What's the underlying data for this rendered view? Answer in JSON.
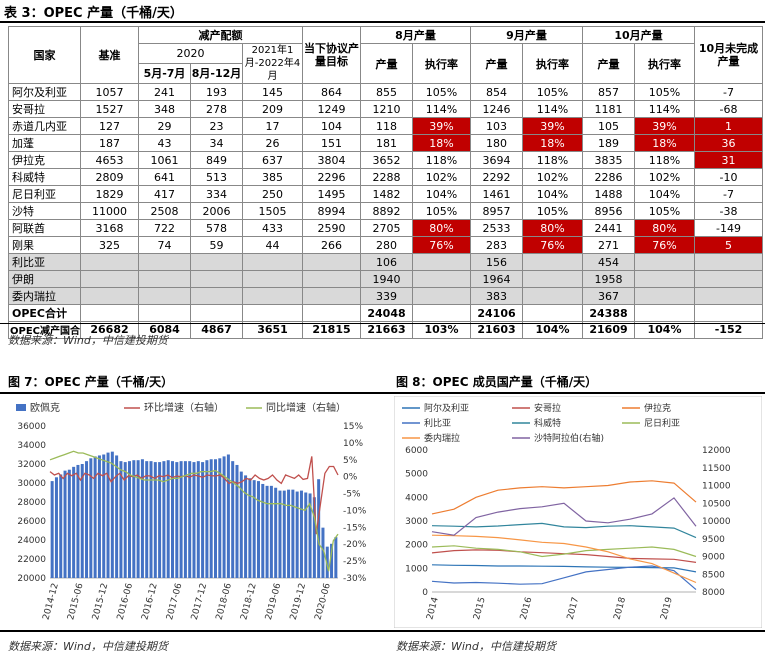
{
  "table": {
    "title": "表 3：OPEC 产量（千桶/天）",
    "headers": {
      "country": "国家",
      "base": "基准",
      "cut_quota": "减产配额",
      "year_2020": "2020",
      "may_jul": "5月-7月",
      "aug_dec": "8月-12月",
      "jan_apr": "2021年1月-2022年4月",
      "target": "当下协议产量目标",
      "aug": "8月产量",
      "sep": "9月产量",
      "oct": "10月产量",
      "production": "产量",
      "compliance": "执行率",
      "incomplete": "10月未完成产量"
    },
    "rows": [
      {
        "country": "阿尔及利亚",
        "base": "1057",
        "q1": "241",
        "q2": "193",
        "q3": "145",
        "target": "864",
        "aug": "855",
        "aug_r": "105%",
        "sep": "854",
        "sep_r": "105%",
        "oct": "857",
        "oct_r": "105%",
        "inc": "-7",
        "hl": []
      },
      {
        "country": "安哥拉",
        "base": "1527",
        "q1": "348",
        "q2": "278",
        "q3": "209",
        "target": "1249",
        "aug": "1210",
        "aug_r": "114%",
        "sep": "1246",
        "sep_r": "114%",
        "oct": "1181",
        "oct_r": "114%",
        "inc": "-68",
        "hl": []
      },
      {
        "country": "赤道几内亚",
        "base": "127",
        "q1": "29",
        "q2": "23",
        "q3": "17",
        "target": "104",
        "aug": "118",
        "aug_r": "39%",
        "sep": "103",
        "sep_r": "39%",
        "oct": "105",
        "oct_r": "39%",
        "inc": "1",
        "hl": [
          "aug_r",
          "sep_r",
          "oct_r",
          "inc"
        ]
      },
      {
        "country": "加蓬",
        "base": "187",
        "q1": "43",
        "q2": "34",
        "q3": "26",
        "target": "151",
        "aug": "181",
        "aug_r": "18%",
        "sep": "180",
        "sep_r": "18%",
        "oct": "189",
        "oct_r": "18%",
        "inc": "36",
        "hl": [
          "aug_r",
          "sep_r",
          "oct_r",
          "inc"
        ]
      },
      {
        "country": "伊拉克",
        "base": "4653",
        "q1": "1061",
        "q2": "849",
        "q3": "637",
        "target": "3804",
        "aug": "3652",
        "aug_r": "118%",
        "sep": "3694",
        "sep_r": "118%",
        "oct": "3835",
        "oct_r": "118%",
        "inc": "31",
        "hl": [
          "inc"
        ]
      },
      {
        "country": "科威特",
        "base": "2809",
        "q1": "641",
        "q2": "513",
        "q3": "385",
        "target": "2296",
        "aug": "2288",
        "aug_r": "102%",
        "sep": "2292",
        "sep_r": "102%",
        "oct": "2286",
        "oct_r": "102%",
        "inc": "-10",
        "hl": []
      },
      {
        "country": "尼日利亚",
        "base": "1829",
        "q1": "417",
        "q2": "334",
        "q3": "250",
        "target": "1495",
        "aug": "1482",
        "aug_r": "104%",
        "sep": "1461",
        "sep_r": "104%",
        "oct": "1488",
        "oct_r": "104%",
        "inc": "-7",
        "hl": []
      },
      {
        "country": "沙特",
        "base": "11000",
        "q1": "2508",
        "q2": "2006",
        "q3": "1505",
        "target": "8994",
        "aug": "8892",
        "aug_r": "105%",
        "sep": "8957",
        "sep_r": "105%",
        "oct": "8956",
        "oct_r": "105%",
        "inc": "-38",
        "hl": []
      },
      {
        "country": "阿联酋",
        "base": "3168",
        "q1": "722",
        "q2": "578",
        "q3": "433",
        "target": "2590",
        "aug": "2705",
        "aug_r": "80%",
        "sep": "2533",
        "sep_r": "80%",
        "oct": "2441",
        "oct_r": "80%",
        "inc": "-149",
        "hl": [
          "aug_r",
          "sep_r",
          "oct_r"
        ]
      },
      {
        "country": "刚果",
        "base": "325",
        "q1": "74",
        "q2": "59",
        "q3": "44",
        "target": "266",
        "aug": "280",
        "aug_r": "76%",
        "sep": "283",
        "sep_r": "76%",
        "oct": "271",
        "oct_r": "76%",
        "inc": "5",
        "hl": [
          "aug_r",
          "sep_r",
          "oct_r",
          "inc"
        ]
      }
    ],
    "exempt_rows": [
      {
        "country": "利比亚",
        "aug": "106",
        "sep": "156",
        "oct": "454"
      },
      {
        "country": "伊朗",
        "aug": "1940",
        "sep": "1964",
        "oct": "1958"
      },
      {
        "country": "委内瑞拉",
        "aug": "339",
        "sep": "383",
        "oct": "367"
      }
    ],
    "total": {
      "label": "OPEC合计",
      "aug": "24048",
      "sep": "24106",
      "oct": "24388"
    },
    "cut_total": {
      "label": "OPEC减产国合计",
      "base": "26682",
      "q1": "6084",
      "q2": "4867",
      "q3": "3651",
      "target": "21815",
      "aug": "21663",
      "aug_r": "103%",
      "sep": "21603",
      "sep_r": "104%",
      "oct": "21609",
      "oct_r": "104%",
      "inc": "-152"
    },
    "source": "数据来源：Wind，中信建投期货"
  },
  "figure7": {
    "title": "图 7：OPEC 产量（千桶/天）",
    "legend": [
      "欧佩克",
      "环比增速（右轴）",
      "同比增速（右轴）"
    ],
    "colors": {
      "bar": "#4472c4",
      "mom": "#c0504d",
      "yoy": "#9bbb59"
    },
    "source": "数据来源：Wind，中信建投期货",
    "chart_data": {
      "type": "bar",
      "x_ticks": [
        "2014-12",
        "2015-06",
        "2015-12",
        "2016-06",
        "2016-12",
        "2017-06",
        "2017-12",
        "2018-06",
        "2018-12",
        "2019-06",
        "2019-12",
        "2020-06"
      ],
      "y_left": {
        "min": 20000,
        "max": 36000,
        "ticks": [
          "20000",
          "22000",
          "24000",
          "26000",
          "28000",
          "30000",
          "32000",
          "34000",
          "36000"
        ]
      },
      "y_right": {
        "min": -30,
        "max": 15,
        "ticks": [
          "-30%",
          "-25%",
          "-20%",
          "-15%",
          "-10%",
          "-5%",
          "0%",
          "5%",
          "10%",
          "15%"
        ]
      },
      "series": [
        {
          "name": "欧佩克",
          "axis": "left",
          "values": [
            30200,
            30600,
            30900,
            31300,
            31400,
            31700,
            31900,
            32000,
            32300,
            32600,
            32800,
            32900,
            33000,
            33200,
            33300,
            32900,
            32300,
            32200,
            32300,
            32400,
            32400,
            32500,
            32300,
            32300,
            32200,
            32200,
            32300,
            32400,
            32300,
            32200,
            32300,
            32300,
            32300,
            32200,
            32300,
            32200,
            32400,
            32500,
            32500,
            32600,
            32800,
            33000,
            32300,
            31900,
            31200,
            30800,
            30500,
            30300,
            30200,
            29900,
            29700,
            29700,
            29500,
            29200,
            29200,
            29300,
            29300,
            29100,
            29200,
            29000,
            28900,
            28500,
            30400,
            25300,
            23300,
            23600,
            24300
          ]
        },
        {
          "name": "环比增速（右轴）",
          "axis": "right",
          "values": [
            1.5,
            0.5,
            1,
            -0.5,
            1,
            0.3,
            1,
            -1,
            1,
            0.5,
            -0.5,
            1,
            0.3,
            1,
            -1.5,
            0,
            1,
            -1,
            0.3,
            0,
            0.5,
            -0.5,
            0.3,
            0.2,
            -0.5,
            0.3,
            0,
            0.5,
            -0.3,
            0.2,
            0,
            0.3,
            -0.2,
            0.5,
            0.2,
            -0.2,
            0.5,
            0.3,
            0.2,
            0.5,
            -0.5,
            -2,
            -1.5,
            -2,
            -1.5,
            -0.5,
            -1,
            0.5,
            -0.5,
            -1,
            -0.5,
            0.5,
            -1,
            -2,
            0.5,
            0,
            -0.5,
            0.5,
            -0.8,
            -0.5,
            6,
            -17,
            -8,
            1,
            3,
            3,
            0.5
          ]
        },
        {
          "name": "同比增速（右轴）",
          "axis": "right",
          "values": [
            5,
            5.5,
            6,
            6.5,
            7,
            7.5,
            7,
            7,
            6.5,
            6,
            5.5,
            5,
            4.5,
            4,
            3,
            2,
            1.5,
            0.5,
            0,
            -0.5,
            -1,
            -1,
            -1,
            -1,
            -1.5,
            -1,
            -0.5,
            -0.5,
            0,
            0.5,
            1,
            1,
            1.5,
            1.5,
            1.5,
            1.8,
            1,
            0,
            -1,
            -2,
            -3,
            -4.5,
            -5.5,
            -6,
            -7,
            -7.5,
            -8,
            -8,
            -8,
            -8,
            -8.5,
            -8.5,
            -9,
            -9.5,
            -10,
            -8,
            -12,
            -20,
            -22,
            -28,
            -19,
            -17
          ]
        }
      ]
    }
  },
  "figure8": {
    "title": "图 8：OPEC 成员国产量（千桶/天）",
    "legend": [
      "阿尔及利亚",
      "安哥拉",
      "伊拉克",
      "利比亚",
      "科威特",
      "尼日利亚",
      "委内瑞拉",
      "沙特阿拉伯(右轴)"
    ],
    "colors": [
      "#2e75b6",
      "#c0504d",
      "#ed7d31",
      "#4472c4",
      "#31859c",
      "#9bbb59",
      "#f79646",
      "#8064a2"
    ],
    "source": "数据来源：Wind，中信建投期货",
    "chart_data": {
      "type": "line",
      "x_ticks": [
        "2014",
        "2015",
        "2016",
        "2017",
        "2018",
        "2019"
      ],
      "y_left": {
        "min": 0,
        "max": 6000,
        "ticks": [
          "0",
          "1000",
          "2000",
          "3000",
          "4000",
          "5000",
          "6000"
        ]
      },
      "y_right": {
        "min": 8000,
        "max": 12000,
        "ticks": [
          "8000",
          "8500",
          "9000",
          "9500",
          "10000",
          "10500",
          "11000",
          "11500",
          "12000"
        ]
      },
      "series": [
        {
          "name": "阿尔及利亚",
          "axis": "left",
          "values": [
            1150,
            1130,
            1120,
            1100,
            1100,
            1090,
            1080,
            1060,
            1050,
            1040,
            1030,
            1020,
            850
          ]
        },
        {
          "name": "安哥拉",
          "axis": "left",
          "values": [
            1650,
            1750,
            1780,
            1760,
            1700,
            1660,
            1620,
            1580,
            1500,
            1420,
            1400,
            1380,
            1250
          ]
        },
        {
          "name": "伊拉克",
          "axis": "left",
          "values": [
            3300,
            3500,
            4000,
            4300,
            4400,
            4450,
            4400,
            4450,
            4500,
            4650,
            4700,
            4600,
            3800
          ]
        },
        {
          "name": "利比亚",
          "axis": "left",
          "values": [
            450,
            380,
            400,
            370,
            330,
            350,
            600,
            850,
            950,
            1050,
            1100,
            900,
            100
          ]
        },
        {
          "name": "科威特",
          "axis": "left",
          "values": [
            2800,
            2780,
            2750,
            2790,
            2850,
            2900,
            2750,
            2720,
            2780,
            2800,
            2750,
            2700,
            2300
          ]
        },
        {
          "name": "尼日利亚",
          "axis": "left",
          "values": [
            1900,
            1950,
            1850,
            1800,
            1700,
            1500,
            1600,
            1750,
            1800,
            1850,
            1900,
            1800,
            1500
          ]
        },
        {
          "name": "委内瑞拉",
          "axis": "left",
          "values": [
            2400,
            2380,
            2350,
            2300,
            2200,
            2100,
            2050,
            1900,
            1700,
            1400,
            1200,
            800,
            400
          ]
        },
        {
          "name": "沙特阿拉伯(右轴)",
          "axis": "right",
          "values": [
            9700,
            9600,
            10100,
            10250,
            10350,
            10400,
            10500,
            10000,
            9950,
            10050,
            10200,
            10650,
            9850
          ]
        }
      ]
    }
  }
}
